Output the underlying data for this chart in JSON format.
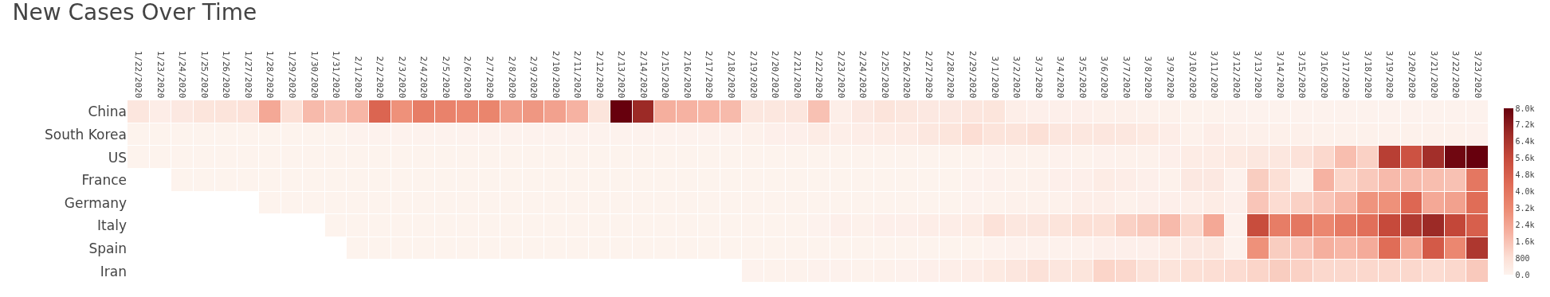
{
  "chart_data": {
    "type": "heatmap",
    "title": "New Cases Over Time",
    "categories": [
      "1/22/2020",
      "1/23/2020",
      "1/24/2020",
      "1/25/2020",
      "1/26/2020",
      "1/27/2020",
      "1/28/2020",
      "1/29/2020",
      "1/30/2020",
      "1/31/2020",
      "2/1/2020",
      "2/2/2020",
      "2/3/2020",
      "2/4/2020",
      "2/5/2020",
      "2/6/2020",
      "2/7/2020",
      "2/8/2020",
      "2/9/2020",
      "2/10/2020",
      "2/11/2020",
      "2/12/2020",
      "2/13/2020",
      "2/14/2020",
      "2/15/2020",
      "2/16/2020",
      "2/17/2020",
      "2/18/2020",
      "2/19/2020",
      "2/20/2020",
      "2/21/2020",
      "2/22/2020",
      "2/23/2020",
      "2/24/2020",
      "2/25/2020",
      "2/26/2020",
      "2/27/2020",
      "2/28/2020",
      "2/29/2020",
      "3/1/2020",
      "3/2/2020",
      "3/3/2020",
      "3/4/2020",
      "3/5/2020",
      "3/6/2020",
      "3/7/2020",
      "3/8/2020",
      "3/9/2020",
      "3/10/2020",
      "3/11/2020",
      "3/12/2020",
      "3/13/2020",
      "3/14/2020",
      "3/15/2020",
      "3/16/2020",
      "3/17/2020",
      "3/18/2020",
      "3/19/2020",
      "3/20/2020",
      "3/21/2020",
      "3/22/2020",
      "3/23/2020"
    ],
    "y_categories": [
      "China",
      "South Korea",
      "US",
      "France",
      "Germany",
      "Italy",
      "Spain",
      "Iran"
    ],
    "cells": [
      [
        550,
        250,
        450,
        600,
        650,
        750,
        2300,
        800,
        1800,
        1600,
        1900,
        4600,
        3000,
        3700,
        3500,
        3300,
        3400,
        2600,
        2800,
        2500,
        2000,
        600,
        8000,
        6800,
        2100,
        2000,
        1900,
        1800,
        500,
        500,
        550,
        1600,
        200,
        450,
        650,
        500,
        450,
        450,
        550,
        600,
        200,
        150,
        150,
        150,
        120,
        120,
        100,
        100,
        60,
        60,
        50,
        50,
        50,
        40,
        40,
        40,
        40,
        40,
        40,
        40,
        40,
        40
      ],
      [
        20,
        20,
        20,
        20,
        20,
        20,
        20,
        20,
        20,
        20,
        30,
        30,
        30,
        30,
        30,
        30,
        30,
        30,
        30,
        30,
        30,
        30,
        30,
        30,
        30,
        30,
        30,
        30,
        100,
        150,
        150,
        300,
        200,
        250,
        300,
        350,
        500,
        600,
        850,
        650,
        650,
        800,
        550,
        500,
        550,
        500,
        400,
        250,
        100,
        250,
        120,
        120,
        120,
        120,
        100,
        100,
        100,
        100,
        100,
        100,
        100,
        80
      ],
      [
        20,
        20,
        20,
        20,
        20,
        20,
        20,
        20,
        20,
        20,
        20,
        20,
        20,
        20,
        20,
        20,
        20,
        20,
        20,
        20,
        20,
        20,
        20,
        20,
        20,
        20,
        20,
        20,
        20,
        20,
        20,
        20,
        20,
        20,
        20,
        20,
        20,
        20,
        20,
        50,
        60,
        60,
        80,
        60,
        80,
        100,
        100,
        150,
        300,
        300,
        400,
        500,
        500,
        700,
        1000,
        1700,
        1200,
        6000,
        5300,
        6600,
        7800,
        8000
      ],
      [
        null,
        null,
        20,
        20,
        20,
        20,
        20,
        20,
        20,
        20,
        20,
        20,
        20,
        20,
        20,
        20,
        20,
        20,
        20,
        20,
        20,
        20,
        20,
        20,
        20,
        20,
        20,
        20,
        20,
        20,
        20,
        20,
        20,
        20,
        20,
        20,
        20,
        20,
        50,
        80,
        60,
        100,
        150,
        150,
        300,
        250,
        150,
        100,
        450,
        450,
        80,
        1300,
        800,
        100,
        2000,
        1100,
        1400,
        1800,
        1800,
        1700,
        1600,
        3900
      ],
      [
        null,
        null,
        null,
        null,
        null,
        null,
        20,
        20,
        20,
        20,
        20,
        20,
        20,
        20,
        20,
        20,
        20,
        20,
        20,
        20,
        20,
        20,
        20,
        20,
        20,
        20,
        20,
        20,
        20,
        20,
        20,
        20,
        20,
        20,
        20,
        20,
        20,
        20,
        50,
        60,
        100,
        100,
        100,
        200,
        200,
        100,
        150,
        150,
        200,
        300,
        150,
        1500,
        900,
        1200,
        1500,
        1900,
        2900,
        3000,
        4500,
        2300,
        2500,
        4300
      ],
      [
        null,
        null,
        null,
        null,
        null,
        null,
        null,
        null,
        null,
        20,
        20,
        20,
        20,
        20,
        20,
        20,
        20,
        20,
        20,
        20,
        20,
        20,
        20,
        20,
        20,
        20,
        20,
        20,
        20,
        20,
        20,
        50,
        150,
        100,
        150,
        150,
        250,
        250,
        300,
        700,
        500,
        550,
        650,
        800,
        800,
        1200,
        1400,
        1800,
        1000,
        2300,
        80,
        5500,
        3700,
        3900,
        3300,
        3800,
        4200,
        5600,
        6200,
        6800,
        5700,
        4800
      ],
      [
        null,
        null,
        null,
        null,
        null,
        null,
        null,
        null,
        null,
        null,
        20,
        20,
        20,
        20,
        20,
        20,
        20,
        20,
        20,
        20,
        20,
        20,
        20,
        20,
        20,
        20,
        20,
        20,
        20,
        20,
        20,
        20,
        20,
        20,
        20,
        20,
        20,
        20,
        20,
        50,
        70,
        80,
        80,
        80,
        150,
        150,
        150,
        300,
        450,
        500,
        50,
        3000,
        1300,
        1500,
        2100,
        1900,
        2200,
        4300,
        2400,
        5000,
        3300,
        6300
      ],
      [
        null,
        null,
        null,
        null,
        null,
        null,
        null,
        null,
        null,
        null,
        null,
        null,
        null,
        null,
        null,
        null,
        null,
        null,
        null,
        null,
        null,
        null,
        null,
        null,
        null,
        null,
        null,
        null,
        50,
        60,
        60,
        80,
        80,
        60,
        100,
        80,
        150,
        200,
        250,
        400,
        550,
        750,
        550,
        600,
        1100,
        1000,
        700,
        650,
        800,
        850,
        900,
        1100,
        1300,
        1200,
        1000,
        1000,
        1000,
        1000,
        1000,
        900,
        1000,
        1400
      ]
    ],
    "clim": [
      0,
      8000
    ],
    "cticks": [
      {
        "value": 0,
        "label": "0.0"
      },
      800,
      {
        "value": 1600,
        "label": "1.6k"
      },
      {
        "value": 2400,
        "label": "2.4k"
      },
      {
        "value": 3200,
        "label": "3.2k"
      },
      {
        "value": 4000,
        "label": "4.0k"
      },
      {
        "value": 4800,
        "label": "4.8k"
      },
      {
        "value": 5600,
        "label": "5.6k"
      },
      {
        "value": 6400,
        "label": "6.4k"
      },
      {
        "value": 7200,
        "label": "7.2k"
      },
      {
        "value": 8000,
        "label": "8.0k"
      }
    ]
  }
}
